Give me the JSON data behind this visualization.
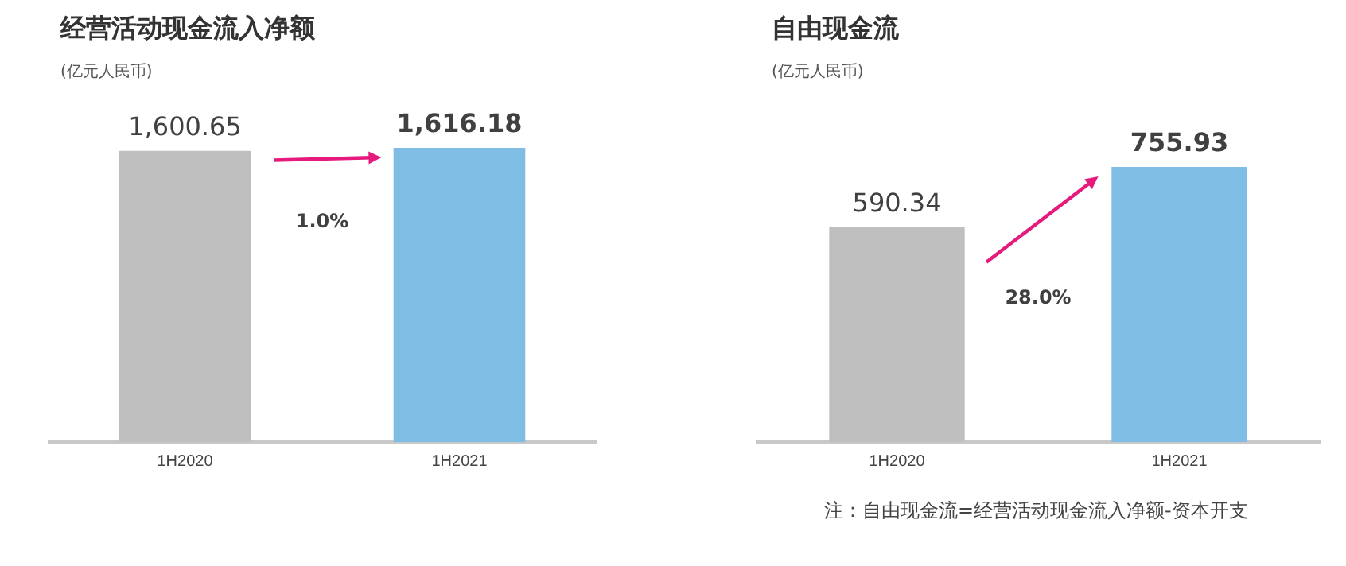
{
  "chart_data": [
    {
      "type": "bar",
      "title": "经营活动现金流入净额",
      "subtitle": "(亿元人民币)",
      "categories": [
        "1H2020",
        "1H2021"
      ],
      "values": [
        1600.65,
        1616.18
      ],
      "colors": [
        "#bfbfbf",
        "#7fbde4"
      ],
      "data_labels": true,
      "value_labels": [
        "1,600.65",
        "1,616.18"
      ],
      "annotations": [
        "1.0%"
      ],
      "legend": false,
      "grid": false
    },
    {
      "type": "bar",
      "title": "自由现金流",
      "subtitle": "(亿元人民币)",
      "categories": [
        "1H2020",
        "1H2021"
      ],
      "values": [
        590.34,
        755.93
      ],
      "colors": [
        "#bfbfbf",
        "#7fbde4"
      ],
      "data_labels": true,
      "value_labels": [
        "590.34",
        "755.93"
      ],
      "annotations": [
        "28.0%",
        "注：自由现金流=经营活动现金流入净额-资本开支"
      ],
      "legend": false,
      "grid": false
    }
  ]
}
